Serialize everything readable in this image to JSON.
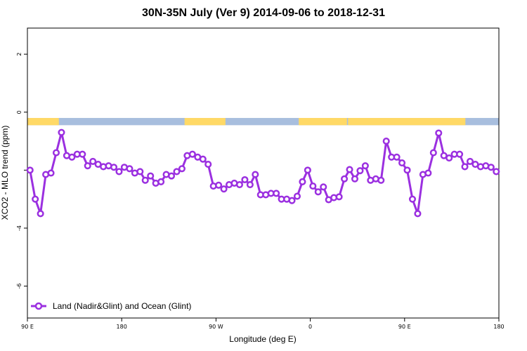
{
  "chart_data": {
    "type": "line",
    "title": "30N-35N July (Ver 9)   2014-09-06 to 2018-12-31",
    "xlabel": "Longitude (deg E)",
    "ylabel": "XCO2 - MLO trend (ppm)",
    "xlim": [
      90,
      540
    ],
    "ylim": [
      -7.1,
      2.9
    ],
    "x_ticks": [
      {
        "value": 90,
        "label": "90 E"
      },
      {
        "value": 180,
        "label": "180"
      },
      {
        "value": 270,
        "label": "90 W"
      },
      {
        "value": 360,
        "label": "0"
      },
      {
        "value": 450,
        "label": "90 E"
      },
      {
        "value": 540,
        "label": "180"
      }
    ],
    "y_ticks": [
      {
        "value": 2,
        "label": "2"
      },
      {
        "value": 0,
        "label": "0"
      },
      {
        "value": -2,
        "label": ""
      },
      {
        "value": -4,
        "label": "-4"
      },
      {
        "value": -6,
        "label": "-6"
      }
    ],
    "grid": false,
    "legend_position": "bottom-left",
    "surface_band": {
      "y_top": -0.2,
      "y_bottom": -0.45,
      "land_color": "#ffd966",
      "ocean_color": "#a8bede",
      "land_segments": [
        [
          90,
          120
        ],
        [
          240,
          279
        ],
        [
          349,
          395
        ],
        [
          396,
          508
        ]
      ]
    },
    "series": [
      {
        "name": "Land (Nadir&Glint) and Ocean (Glint)",
        "color": "#9b30e0",
        "x": [
          92.5,
          97.5,
          102.5,
          107.5,
          112.5,
          117.5,
          122.5,
          127.5,
          132.5,
          137.5,
          142.5,
          147.5,
          152.5,
          157.5,
          162.5,
          167.5,
          172.5,
          177.5,
          182.5,
          187.5,
          192.5,
          197.5,
          202.5,
          207.5,
          212.5,
          217.5,
          222.5,
          227.5,
          232.5,
          237.5,
          242.5,
          247.5,
          252.5,
          257.5,
          262.5,
          267.5,
          272.5,
          277.5,
          282.5,
          287.5,
          292.5,
          297.5,
          302.5,
          307.5,
          312.5,
          317.5,
          322.5,
          327.5,
          332.5,
          337.5,
          342.5,
          347.5,
          352.5,
          357.5,
          362.5,
          367.5,
          372.5,
          377.5,
          382.5,
          387.5,
          392.5,
          397.5,
          402.5,
          407.5,
          412.5,
          417.5,
          422.5,
          427.5,
          432.5,
          437.5,
          442.5,
          447.5,
          452.5,
          457.5,
          462.5,
          467.5,
          472.5,
          477.5,
          482.5,
          487.5,
          492.5,
          497.5,
          502.5,
          507.5,
          512.5,
          517.5,
          522.5,
          527.5,
          532.5,
          537.5
        ],
        "y": [
          -2.0,
          -3.0,
          -3.5,
          -2.15,
          -2.1,
          -1.4,
          -0.7,
          -1.5,
          -1.55,
          -1.45,
          -1.45,
          -1.85,
          -1.7,
          -1.8,
          -1.88,
          -1.85,
          -1.9,
          -2.05,
          -1.9,
          -1.95,
          -2.1,
          -2.05,
          -2.35,
          -2.2,
          -2.45,
          -2.4,
          -2.15,
          -2.2,
          -2.05,
          -1.95,
          -1.5,
          -1.45,
          -1.55,
          -1.62,
          -1.8,
          -2.55,
          -2.52,
          -2.65,
          -2.5,
          -2.45,
          -2.5,
          -2.33,
          -2.5,
          -2.15,
          -2.85,
          -2.85,
          -2.8,
          -2.8,
          -3.0,
          -3.0,
          -3.05,
          -2.9,
          -2.4,
          -2.0,
          -2.55,
          -2.75,
          -2.58,
          -3.02,
          -2.95,
          -2.92,
          -2.3,
          -1.98,
          -2.3,
          -2.02,
          -1.85,
          -2.35,
          -2.3,
          -2.35,
          -1.0,
          -1.55,
          -1.55,
          -1.75,
          -2.0,
          -3.0,
          -3.5,
          -2.15,
          -2.1,
          -1.4,
          -0.72,
          -1.5,
          -1.58,
          -1.45,
          -1.45,
          -1.88,
          -1.7,
          -1.8,
          -1.88,
          -1.85,
          -1.9,
          -2.05
        ]
      }
    ]
  }
}
